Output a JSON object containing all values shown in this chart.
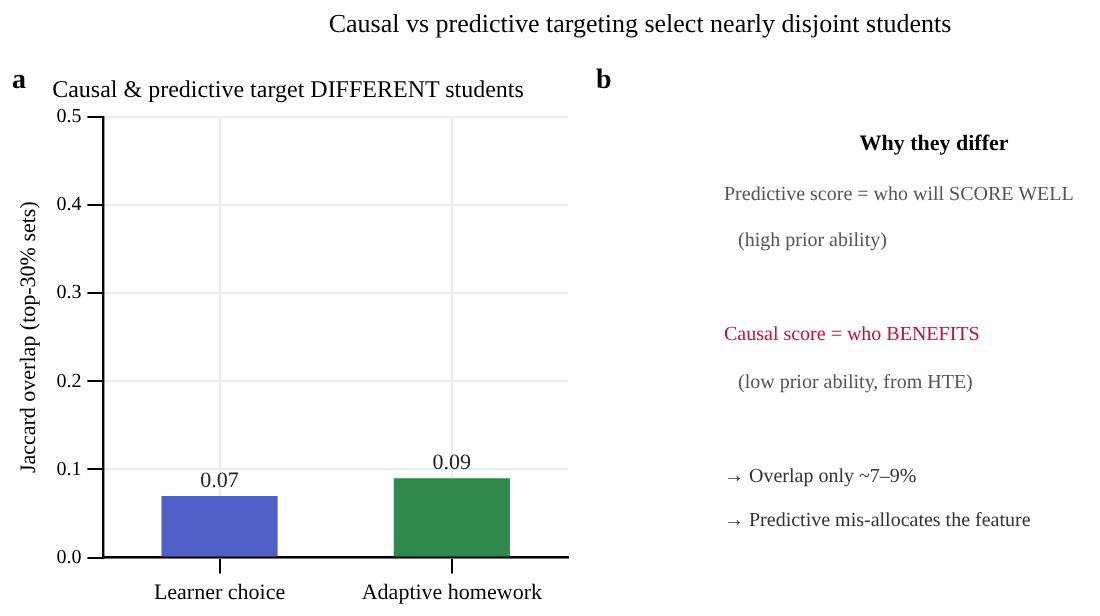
{
  "chart_data": [
    {
      "type": "bar",
      "title": "Causal & predictive target DIFFERENT students",
      "ylabel": "Jaccard overlap (top-30% sets)",
      "categories": [
        "Learner choice",
        "Adaptive homework"
      ],
      "values": [
        0.07,
        0.09
      ],
      "colors": [
        "#505fc8",
        "#2e8a4c"
      ],
      "ylim": [
        0,
        0.5
      ],
      "yticks": [
        {
          "value": 0,
          "label": "0.0"
        },
        0.1,
        0.2,
        0.3,
        0.4,
        0.5
      ],
      "grid": true,
      "data_labels": true,
      "annotations": [
        "Causal vs predictive targeting select nearly disjoint students",
        "a"
      ]
    },
    {
      "type": "other",
      "title": "Why they differ",
      "annotations": [
        "b",
        "Predictive score = who will SCORE WELL",
        "(high prior ability)",
        "Causal score = who BENEFITS",
        "(low prior ability, from HTE)",
        "→ Overlap only ~7–9%",
        "→ Predictive mis-allocates the feature"
      ],
      "colors": [
        "#000000",
        "#555555",
        "#555555",
        "#c8102e",
        "#555555",
        "#333333",
        "#333333"
      ]
    }
  ]
}
